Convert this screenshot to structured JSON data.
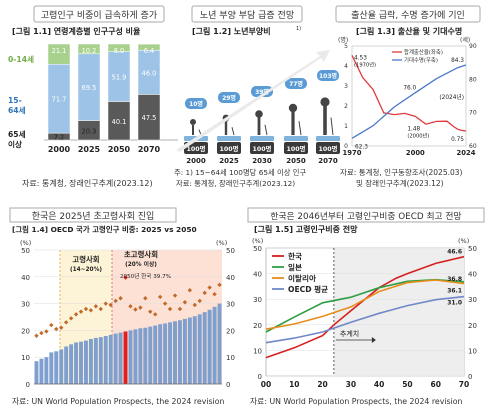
{
  "panels": {
    "p1": {
      "title": "고령인구 비중이 급속하게 증가",
      "fig": "[그림 1.1] 연령계층별 인구구성 비율",
      "source": "자료: 통계청, 장래인구추계(2023.12)"
    },
    "p2": {
      "title": "노년 부양 부담 급증 전망",
      "fig": "[그림 1.2] 노년부양비",
      "footnote1": "주: 1) 15~64세 100명당 65세 이상 인구",
      "footnote2": "자료: 통계청, 장래인구추계(2023.12)"
    },
    "p3": {
      "title": "출산율 급락, 수명 증가에 기인",
      "fig": "[그림 1.3] 출산율 및 기대수명",
      "source1": "자료: 통계청, 인구동향조사(2025.03)",
      "source2": "및 장래인구추계(2023.12)"
    },
    "p4": {
      "title": "한국은 2025년 초고령사회 진입",
      "fig": "[그림 1.4] OECD 국가 고령인구 비중: 2025 vs 2050",
      "band_aged": "고령사회",
      "band_aged_range": "(14~20%)",
      "band_super": "초고령사회",
      "band_super_range": "(20% 이상)",
      "note2050": "2050년 한국 39.7%",
      "source": "자료: UN World Population Prospects, the 2024 revision"
    },
    "p5": {
      "title": "한국은 2046년부터 고령인구비중 OECD 최고 전망",
      "fig": "[그림 1.5] 고령인구비중 전망",
      "estimate_label": "추계치",
      "source": "자료: UN World Population Prospects, the 2024 revision"
    }
  },
  "chart_data": [
    {
      "type": "bar",
      "categories": [
        "2000",
        "2025",
        "2050",
        "2070"
      ],
      "series": [
        {
          "name": "0-14세",
          "values": [
            21.1,
            10.2,
            8.0,
            6.4
          ]
        },
        {
          "name": "15-64세",
          "values": [
            71.7,
            69.5,
            51.9,
            46.0
          ]
        },
        {
          "name": "65세 이상",
          "values": [
            7.2,
            20.3,
            40.1,
            47.5
          ]
        }
      ],
      "colors": [
        "#a9d18e",
        "#9dc3e6",
        "#595959"
      ],
      "ylim": [
        0,
        100
      ]
    },
    {
      "type": "bar",
      "categories": [
        "2000",
        "2025",
        "2030",
        "2050",
        "2070"
      ],
      "values": [
        10,
        29,
        39,
        77,
        103
      ],
      "value_labels": [
        "10명",
        "29명",
        "39명",
        "77명",
        "103명"
      ],
      "base_labels": [
        "100명",
        "100명",
        "100명",
        "100명",
        "100명"
      ],
      "colors": {
        "bubble": "#5b9bd5",
        "base": "#3a3a3a"
      }
    },
    {
      "type": "line",
      "x_ticks": [
        "1970",
        "2000",
        "2024"
      ],
      "series": [
        {
          "name": "합계출산율(좌축)",
          "axis": "left",
          "color": "#e03b3b",
          "points": [
            [
              1970,
              4.53
            ],
            [
              1975,
              3.43
            ],
            [
              1980,
              2.82
            ],
            [
              1985,
              1.66
            ],
            [
              1990,
              1.57
            ],
            [
              1995,
              1.63
            ],
            [
              2000,
              1.48
            ],
            [
              2005,
              1.09
            ],
            [
              2010,
              1.23
            ],
            [
              2015,
              1.24
            ],
            [
              2018,
              0.98
            ],
            [
              2020,
              0.84
            ],
            [
              2022,
              0.78
            ],
            [
              2024,
              0.75
            ]
          ]
        },
        {
          "name": "기대수명(우축)",
          "axis": "right",
          "color": "#4a78c9",
          "points": [
            [
              1970,
              62.3
            ],
            [
              1980,
              66.1
            ],
            [
              1990,
              71.7
            ],
            [
              2000,
              76.0
            ],
            [
              2010,
              80.2
            ],
            [
              2020,
              83.5
            ],
            [
              2024,
              84.3
            ]
          ]
        }
      ],
      "annotations": [
        {
          "label": "4.53",
          "sub": "(1970년)",
          "x": 1970,
          "y": 4.53
        },
        {
          "label": "62.3",
          "x": 1970,
          "y": 62.3
        },
        {
          "label": "76.0",
          "x": 2000,
          "y": 76.0
        },
        {
          "label": "1.48",
          "sub": "(2000년)",
          "x": 2000,
          "y": 1.48
        },
        {
          "label": "84.3",
          "x": 2024,
          "y": 84.3
        },
        {
          "label": "(2024년)",
          "x": 2024,
          "y": 2.2
        },
        {
          "label": "0.75",
          "x": 2024,
          "y": 0.75
        }
      ],
      "ylim_left": [
        0,
        5
      ],
      "yticks_left": [
        "0",
        "1",
        "2",
        "3",
        "4",
        "5"
      ],
      "ylim_right": [
        60,
        90
      ],
      "yticks_right": [
        "60",
        "70",
        "80",
        "90"
      ],
      "yunit_left": "(명)",
      "yunit_right": "(세)"
    },
    {
      "type": "bar",
      "unit": "(%)",
      "ylim": [
        0,
        50
      ],
      "yticks": [
        "0",
        "10",
        "20",
        "30",
        "40",
        "50"
      ],
      "series": [
        {
          "name": "2025",
          "color": "#7f9fcf",
          "values": [
            8.5,
            9.4,
            10.0,
            11.8,
            12.2,
            12.9,
            14.0,
            14.8,
            15.5,
            15.8,
            16.2,
            16.8,
            17.2,
            17.5,
            17.9,
            18.3,
            18.8,
            19.2,
            19.6,
            20.0,
            20.4,
            20.8,
            21.0,
            21.4,
            21.8,
            22.3,
            22.6,
            23.0,
            23.4,
            23.8,
            24.3,
            24.8,
            25.3,
            26.0,
            26.8,
            27.7,
            28.8,
            30.0
          ]
        },
        {
          "name": "2050",
          "marker": "diamond",
          "color": "#c06a2b",
          "values": [
            18.0,
            19.0,
            19.6,
            22.0,
            20.5,
            21.0,
            23.0,
            24.5,
            26.0,
            27.0,
            28.0,
            27.5,
            29.0,
            28.0,
            30.0,
            29.5,
            31.0,
            32.0,
            39.7,
            29.0,
            27.8,
            28.5,
            32.0,
            27.0,
            26.0,
            32.5,
            30.0,
            28.0,
            33.0,
            28.0,
            30.5,
            35.0,
            29.5,
            31.0,
            34.0,
            36.0,
            33.5,
            37.0
          ]
        }
      ],
      "highlight_index": 18,
      "highlight_color": "#e02020"
    },
    {
      "type": "line",
      "unit": "(%)",
      "x_ticks": [
        "00",
        "10",
        "20",
        "30",
        "40",
        "50",
        "60",
        "70"
      ],
      "xlim": [
        0,
        70
      ],
      "ylim": [
        0,
        50
      ],
      "yticks": [
        "0",
        "10",
        "20",
        "30",
        "40",
        "50"
      ],
      "estimate_start": 24,
      "series": [
        {
          "name": "한국",
          "color": "#d62020",
          "end_label": "46.6",
          "points": [
            [
              0,
              7.2
            ],
            [
              10,
              11.0
            ],
            [
              20,
              15.8
            ],
            [
              24,
              20.0
            ],
            [
              30,
              25.5
            ],
            [
              40,
              34.5
            ],
            [
              46,
              38.2
            ],
            [
              50,
              40.0
            ],
            [
              60,
              44.0
            ],
            [
              70,
              46.6
            ]
          ]
        },
        {
          "name": "일본",
          "color": "#2e9e44",
          "end_label": "36.8",
          "points": [
            [
              0,
              17.2
            ],
            [
              10,
              23.0
            ],
            [
              20,
              28.6
            ],
            [
              30,
              30.8
            ],
            [
              40,
              34.5
            ],
            [
              50,
              37.0
            ],
            [
              60,
              37.6
            ],
            [
              70,
              36.8
            ]
          ]
        },
        {
          "name": "이탈리아",
          "color": "#e88d1c",
          "end_label": "36.1",
          "points": [
            [
              0,
              18.3
            ],
            [
              10,
              20.3
            ],
            [
              20,
              23.3
            ],
            [
              30,
              27.0
            ],
            [
              40,
              33.0
            ],
            [
              50,
              36.5
            ],
            [
              60,
              37.5
            ],
            [
              70,
              36.1
            ]
          ]
        },
        {
          "name": "OECD 평균",
          "color": "#6f88c8",
          "end_label": "31.0",
          "points": [
            [
              0,
              13.0
            ],
            [
              10,
              14.8
            ],
            [
              20,
              17.2
            ],
            [
              30,
              21.0
            ],
            [
              40,
              24.5
            ],
            [
              50,
              27.5
            ],
            [
              60,
              29.8
            ],
            [
              70,
              31.0
            ]
          ]
        }
      ]
    }
  ]
}
